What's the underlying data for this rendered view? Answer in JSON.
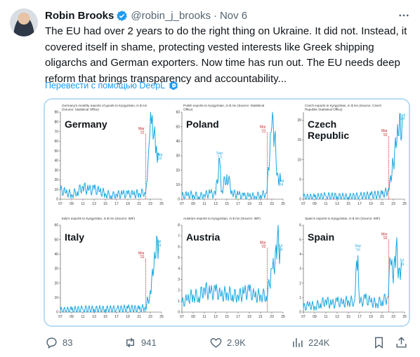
{
  "tweet": {
    "author_name": "Robin Brooks",
    "handle": "@robin_j_brooks",
    "date": "Nov 6",
    "text": "The EU had over 2 years to do the right thing on Ukraine. It did not. Instead, it covered itself in shame, protecting vested interests like Greek shipping oligarchs and German exporters. Now time has run out. The EU needs deep reform that brings transparency and accountability...",
    "translate_label": "Перевести с помощью DeepL"
  },
  "actions": {
    "replies": "83",
    "reposts": "941",
    "likes": "2.9K",
    "views": "224K"
  },
  "colors": {
    "line": "#1aa6e0",
    "mar22": "#c0181c",
    "accent": "#1d9bf0",
    "muted": "#536471"
  },
  "icons": [
    "verified-icon",
    "more-icon",
    "translate-icon",
    "reply-icon",
    "repost-icon",
    "like-icon",
    "views-icon",
    "bookmark-icon",
    "share-icon"
  ],
  "x_ticks": [
    "07",
    "09",
    "11",
    "13",
    "15",
    "17",
    "19",
    "21",
    "23",
    "25"
  ],
  "chart_data": [
    {
      "type": "line",
      "country": "Germany",
      "source": "Germany's monthly exports of goods to Kyrgyzstan, in $ mn (Source: Statistical Office)",
      "y_ticks": [
        "0",
        "10",
        "20",
        "30",
        "40",
        "50",
        "60",
        "70",
        "80",
        "90"
      ],
      "ylim": [
        0,
        90
      ],
      "xlim": [
        2007,
        2025
      ],
      "annotations": [
        {
          "text": "Mar '22",
          "x": 2022.2,
          "y": 72,
          "color": "#c0181c",
          "line": true
        },
        {
          "text": "Aug '24",
          "x": 2024.6,
          "y": 45,
          "color": "#1aa6e0"
        }
      ],
      "x": [
        2007,
        2008,
        2009,
        2010,
        2011,
        2012,
        2013,
        2014,
        2015,
        2016,
        2017,
        2018,
        2019,
        2020,
        2021,
        2022,
        2022.3,
        2022.6,
        2022.9,
        2023.2,
        2023.5,
        2023.8,
        2024.1,
        2024.4,
        2024.6
      ],
      "values": [
        9,
        7,
        5,
        8,
        13,
        9,
        10,
        8,
        6,
        4,
        5,
        5,
        5,
        5,
        6,
        7,
        15,
        40,
        65,
        78,
        62,
        75,
        55,
        48,
        45
      ]
    },
    {
      "type": "line",
      "country": "Poland",
      "source": "Polish exports to Kyrgyzstan, in $ mn (Source: Statistical Office)",
      "y_ticks": [
        "0",
        "10",
        "20",
        "30",
        "40",
        "50",
        "60"
      ],
      "ylim": [
        0,
        60
      ],
      "xlim": [
        2007,
        2025
      ],
      "annotations": [
        {
          "text": "Mar '22",
          "x": 2022.2,
          "y": 49,
          "color": "#c0181c",
          "line": true
        },
        {
          "text": "Sep '13",
          "x": 2013.7,
          "y": 31,
          "color": "#1aa6e0"
        },
        {
          "text": "Aug '24",
          "x": 2024.6,
          "y": 12,
          "color": "#1aa6e0"
        }
      ],
      "x": [
        2007,
        2008,
        2009,
        2010,
        2011,
        2012,
        2013,
        2013.7,
        2014,
        2015,
        2016,
        2017,
        2018,
        2019,
        2020,
        2021,
        2022,
        2022.5,
        2023,
        2023.5,
        2024,
        2024.6
      ],
      "values": [
        2,
        3,
        3,
        2,
        3,
        4,
        3,
        28,
        5,
        17,
        4,
        3,
        2,
        2,
        2,
        3,
        4,
        20,
        50,
        44,
        18,
        12
      ]
    },
    {
      "type": "line",
      "country": "Czech Republic",
      "source": "Czech exports to Kyrgyzstan, in $ mn (Source: Czech Republic Statistical Office)",
      "y_ticks": [
        "0",
        "5",
        "10",
        "15",
        "20"
      ],
      "ylim": [
        0,
        22
      ],
      "xlim": [
        2007,
        2025
      ],
      "annotations": [
        {
          "text": "Mar '22",
          "x": 2022.2,
          "y": 17,
          "color": "#c0181c",
          "line": true
        },
        {
          "text": "Aug '24",
          "x": 2024.6,
          "y": 21,
          "color": "#1aa6e0"
        }
      ],
      "x": [
        2007,
        2009,
        2011,
        2013,
        2015,
        2017,
        2019,
        2021,
        2022,
        2022.5,
        2023,
        2023.5,
        2024,
        2024.6
      ],
      "values": [
        0.5,
        0.5,
        0.8,
        0.7,
        0.6,
        0.8,
        1,
        1.2,
        2,
        6,
        9,
        13,
        16,
        21
      ]
    },
    {
      "type": "line",
      "country": "Italy",
      "source": "Italy's exports to Kyrgyzstan, in $ mn (Source: IMF)",
      "y_ticks": [
        "0",
        "10",
        "20",
        "30",
        "40",
        "50",
        "60"
      ],
      "ylim": [
        0,
        60
      ],
      "xlim": [
        2007,
        2025
      ],
      "annotations": [
        {
          "text": "Mar '22",
          "x": 2022.2,
          "y": 40,
          "color": "#c0181c",
          "line": true
        },
        {
          "text": "Jul '24",
          "x": 2024.5,
          "y": 48,
          "color": "#1aa6e0"
        }
      ],
      "x": [
        2007,
        2009,
        2011,
        2013,
        2015,
        2017,
        2019,
        2021,
        2022,
        2022.6,
        2023,
        2023.5,
        2024,
        2024.5
      ],
      "values": [
        1,
        1.5,
        2,
        2,
        2,
        2,
        2.5,
        2,
        3,
        8,
        15,
        25,
        38,
        50
      ]
    },
    {
      "type": "line",
      "country": "Austria",
      "source": "Austria's exports to Kyrgyzstan, in $ mn (Source: IMF)",
      "y_ticks": [
        "0",
        "1",
        "2",
        "3",
        "4",
        "5",
        "6",
        "7",
        "8"
      ],
      "ylim": [
        0,
        8
      ],
      "xlim": [
        2007,
        2025
      ],
      "annotations": [
        {
          "text": "Mar '22",
          "x": 2022.2,
          "y": 6.3,
          "color": "#c0181c",
          "line": true
        },
        {
          "text": "Jul '24",
          "x": 2024.5,
          "y": 6,
          "color": "#1aa6e0"
        }
      ],
      "x": [
        2007,
        2008,
        2009,
        2010,
        2011,
        2012,
        2013,
        2014,
        2015,
        2016,
        2017,
        2018,
        2019,
        2020,
        2021,
        2022,
        2022.6,
        2023,
        2023.5,
        2024,
        2024.5
      ],
      "values": [
        0.8,
        1.2,
        1.6,
        1.4,
        2.2,
        1.7,
        1.9,
        1.5,
        1.8,
        1.6,
        1.5,
        1.7,
        1.9,
        1.4,
        1.6,
        1.5,
        2.5,
        4,
        3.5,
        7,
        6
      ]
    },
    {
      "type": "line",
      "country": "Spain",
      "source": "Spain's exports to Kyrgyzstan, in $ mn (Source: IMF)",
      "y_ticks": [
        "0",
        "1",
        "2",
        "3",
        "4",
        "5",
        "6"
      ],
      "ylim": [
        0,
        6
      ],
      "xlim": [
        2007,
        2025
      ],
      "annotations": [
        {
          "text": "Mar '22",
          "x": 2022.2,
          "y": 5.3,
          "color": "#c0181c",
          "line": true
        },
        {
          "text": "Sep '16",
          "x": 2016.7,
          "y": 4.5,
          "color": "#1aa6e0"
        },
        {
          "text": "Jul '24",
          "x": 2024.5,
          "y": 3.5,
          "color": "#1aa6e0"
        }
      ],
      "x": [
        2007,
        2008,
        2009,
        2010,
        2011,
        2012,
        2013,
        2014,
        2015,
        2016,
        2016.7,
        2017,
        2018,
        2019,
        2020,
        2021,
        2022,
        2022.5,
        2023,
        2023.5,
        2024,
        2024.5
      ],
      "values": [
        0.3,
        0.5,
        0.4,
        0.6,
        0.8,
        0.5,
        0.7,
        0.6,
        0.8,
        0.7,
        3.9,
        0.6,
        0.9,
        0.7,
        0.6,
        0.8,
        1,
        3.5,
        2,
        4.5,
        3,
        3.5
      ]
    }
  ]
}
